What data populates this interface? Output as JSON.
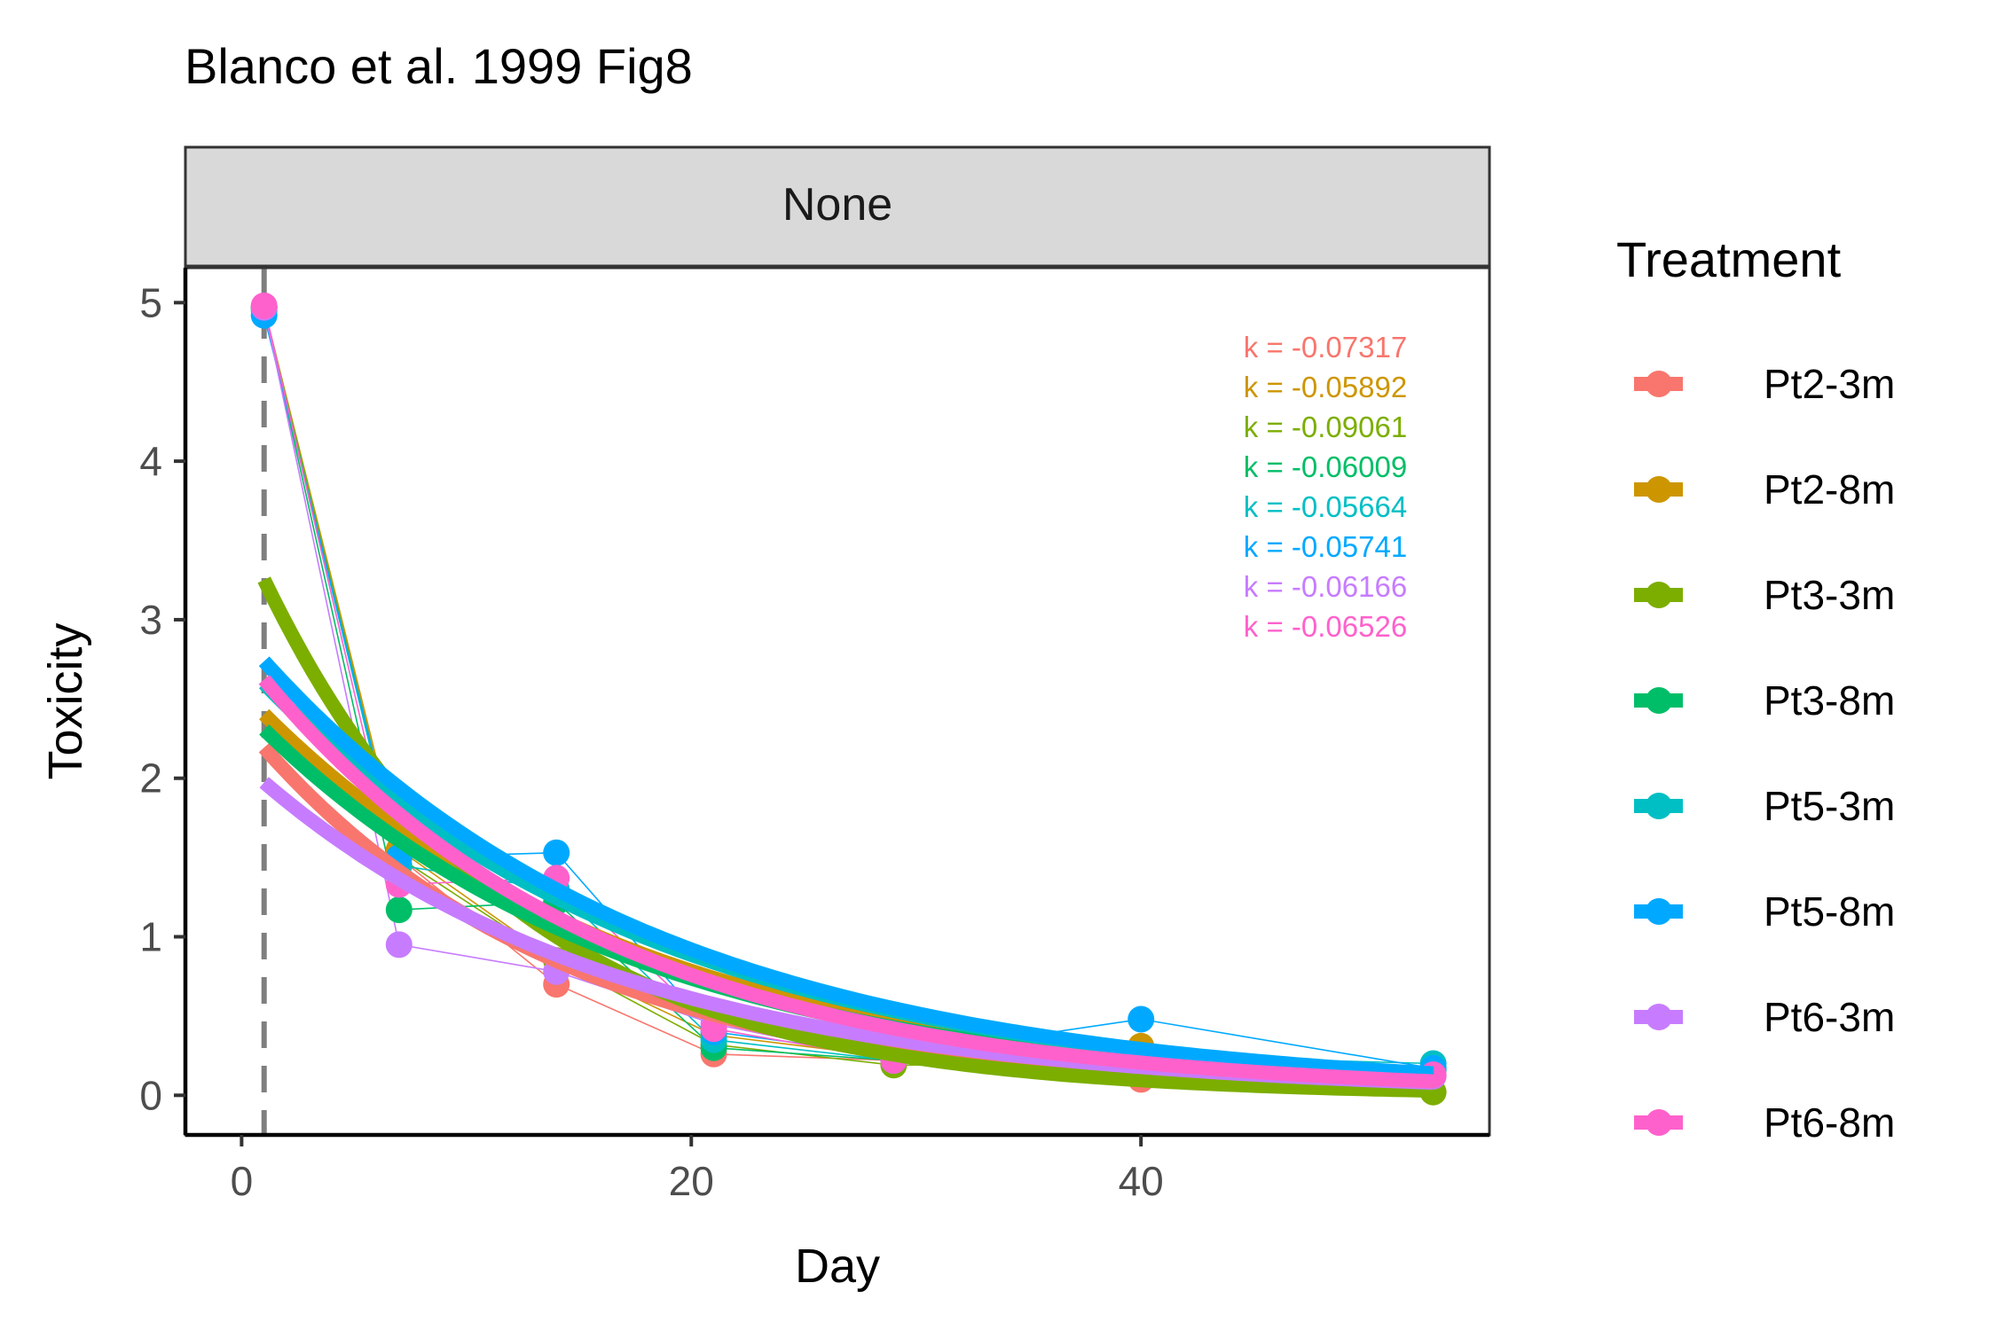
{
  "chart_data": {
    "type": "line",
    "title": "Blanco et al. 1999 Fig8",
    "facet": "None",
    "xlabel": "Day",
    "ylabel": "Toxicity",
    "xlim": [
      -2.5,
      55.5
    ],
    "ylim": [
      -0.25,
      5.22
    ],
    "xticks": [
      0,
      20,
      40
    ],
    "yticks": [
      0,
      1,
      2,
      3,
      4,
      5
    ],
    "vline_x": 1,
    "grid": false,
    "legend_title": "Treatment",
    "legend_position": "right",
    "series": [
      {
        "name": "Pt2-3m",
        "color": "#F8766D",
        "k": "k = -0.07317",
        "fit": {
          "a": 2.36,
          "b": -0.07317
        },
        "x": [
          1,
          7,
          14,
          21,
          29,
          40,
          53
        ],
        "y": [
          4.97,
          1.5,
          0.7,
          0.26,
          0.22,
          0.1,
          0.12
        ]
      },
      {
        "name": "Pt2-8m",
        "color": "#CD9600",
        "k": "k = -0.05892",
        "fit": {
          "a": 2.55,
          "b": -0.05892
        },
        "x": [
          1,
          7,
          14,
          21,
          29,
          40,
          53
        ],
        "y": [
          4.97,
          1.55,
          0.85,
          0.38,
          0.24,
          0.31,
          0.16
        ]
      },
      {
        "name": "Pt3-3m",
        "color": "#7CAE00",
        "k": "k = -0.09061",
        "fit": {
          "a": 3.56,
          "b": -0.09061
        },
        "x": [
          1,
          7,
          14,
          21,
          29,
          40,
          53
        ],
        "y": [
          4.97,
          1.5,
          0.85,
          0.32,
          0.19,
          0.2,
          0.02
        ]
      },
      {
        "name": "Pt3-8m",
        "color": "#00BE67",
        "k": "k = -0.06009",
        "fit": {
          "a": 2.45,
          "b": -0.06009
        },
        "x": [
          1,
          7,
          14,
          21,
          29,
          40,
          53
        ],
        "y": [
          4.97,
          1.17,
          1.22,
          0.3,
          0.22,
          0.2,
          0.16
        ]
      },
      {
        "name": "Pt5-3m",
        "color": "#00BFC4",
        "k": "k = -0.05664",
        "fit": {
          "a": 2.75,
          "b": -0.05664
        },
        "x": [
          1,
          7,
          14,
          21,
          29,
          40,
          53
        ],
        "y": [
          4.95,
          1.45,
          1.3,
          0.35,
          0.22,
          0.25,
          0.2
        ]
      },
      {
        "name": "Pt5-8m",
        "color": "#00A9FF",
        "k": "k = -0.05741",
        "fit": {
          "a": 2.9,
          "b": -0.05741
        },
        "x": [
          1,
          7,
          14,
          21,
          29,
          40,
          53
        ],
        "y": [
          4.92,
          1.5,
          1.53,
          0.4,
          0.25,
          0.48,
          0.17
        ]
      },
      {
        "name": "Pt6-3m",
        "color": "#C77CFF",
        "k": "k = -0.06166",
        "fit": {
          "a": 2.1,
          "b": -0.06166
        },
        "x": [
          1,
          7,
          14,
          21,
          29,
          40,
          53
        ],
        "y": [
          4.97,
          0.95,
          0.78,
          0.45,
          0.22,
          0.15,
          0.12
        ]
      },
      {
        "name": "Pt6-8m",
        "color": "#FF61CC",
        "k": "k = -0.06526",
        "fit": {
          "a": 2.8,
          "b": -0.06526
        },
        "x": [
          1,
          7,
          14,
          21,
          29,
          40,
          53
        ],
        "y": [
          4.98,
          1.33,
          1.37,
          0.42,
          0.22,
          0.15,
          0.13
        ]
      }
    ]
  }
}
